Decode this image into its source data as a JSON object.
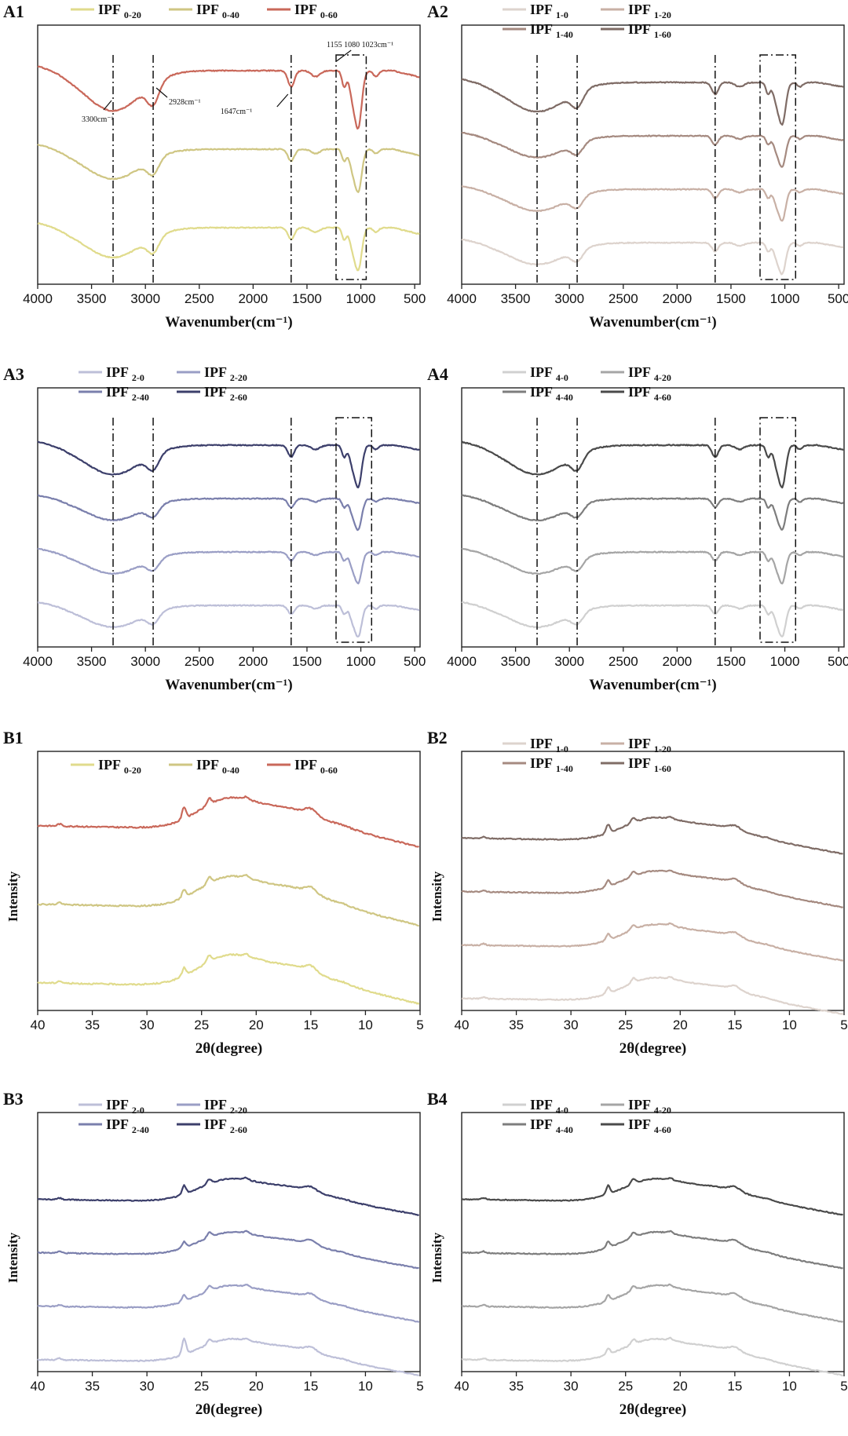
{
  "chart_data": [
    {
      "id": "A1",
      "type": "line",
      "kind": "ftir",
      "xlabel": "Wavenumber(cm⁻¹)",
      "ylabel": "",
      "xlim": [
        4000,
        450
      ],
      "xticks": [
        4000,
        3500,
        3000,
        2500,
        2000,
        1500,
        1000,
        500
      ],
      "reference_lines": [
        3300,
        2928,
        1647
      ],
      "highlight_box": [
        1230,
        950
      ],
      "annotations": [
        "3300cm⁻¹",
        "2928cm⁻¹",
        "1647cm⁻¹",
        "1155 1080 1023cm⁻¹"
      ],
      "series": [
        {
          "prefix": "IPF",
          "sub": "0-20",
          "color": "#e0db8c"
        },
        {
          "prefix": "IPF",
          "sub": "0-40",
          "color": "#cfc683"
        },
        {
          "prefix": "IPF",
          "sub": "0-60",
          "color": "#c9685a"
        }
      ]
    },
    {
      "id": "A2",
      "type": "line",
      "kind": "ftir",
      "xlabel": "Wavenumber(cm⁻¹)",
      "ylabel": "",
      "xlim": [
        4000,
        450
      ],
      "xticks": [
        4000,
        3500,
        3000,
        2500,
        2000,
        1500,
        1000,
        500
      ],
      "reference_lines": [
        3300,
        2928,
        1647
      ],
      "highlight_box": [
        1230,
        900
      ],
      "annotations": [],
      "series": [
        {
          "prefix": "IPF",
          "sub": "1-0",
          "color": "#ddd3cd"
        },
        {
          "prefix": "IPF",
          "sub": "1-20",
          "color": "#c8b0a5"
        },
        {
          "prefix": "IPF",
          "sub": "1-40",
          "color": "#a58a80"
        },
        {
          "prefix": "IPF",
          "sub": "1-60",
          "color": "#7f6c66"
        }
      ]
    },
    {
      "id": "A3",
      "type": "line",
      "kind": "ftir",
      "xlabel": "Wavenumber(cm⁻¹)",
      "ylabel": "",
      "xlim": [
        4000,
        450
      ],
      "xticks": [
        4000,
        3500,
        3000,
        2500,
        2000,
        1500,
        1000,
        500
      ],
      "reference_lines": [
        3300,
        2928,
        1647
      ],
      "highlight_box": [
        1230,
        900
      ],
      "annotations": [],
      "series": [
        {
          "prefix": "IPF",
          "sub": "2-0",
          "color": "#bdbfd8"
        },
        {
          "prefix": "IPF",
          "sub": "2-20",
          "color": "#9a9ec5"
        },
        {
          "prefix": "IPF",
          "sub": "2-40",
          "color": "#7a7fac"
        },
        {
          "prefix": "IPF",
          "sub": "2-60",
          "color": "#3c3f6b"
        }
      ]
    },
    {
      "id": "A4",
      "type": "line",
      "kind": "ftir",
      "xlabel": "Wavenumber(cm⁻¹)",
      "ylabel": "",
      "xlim": [
        4000,
        450
      ],
      "xticks": [
        4000,
        3500,
        3000,
        2500,
        2000,
        1500,
        1000,
        500
      ],
      "reference_lines": [
        3300,
        2928,
        1647
      ],
      "highlight_box": [
        1230,
        900
      ],
      "annotations": [],
      "series": [
        {
          "prefix": "IPF",
          "sub": "4-0",
          "color": "#d0d0d0"
        },
        {
          "prefix": "IPF",
          "sub": "4-20",
          "color": "#a5a5a5"
        },
        {
          "prefix": "IPF",
          "sub": "4-40",
          "color": "#7d7d7d"
        },
        {
          "prefix": "IPF",
          "sub": "4-60",
          "color": "#4a4a4a"
        }
      ]
    },
    {
      "id": "B1",
      "type": "line",
      "kind": "xrd",
      "xlabel": "2θ(degree)",
      "ylabel": "Intensity",
      "xlim": [
        40,
        5
      ],
      "xticks": [
        40,
        35,
        30,
        25,
        20,
        15,
        10,
        5
      ],
      "series": [
        {
          "prefix": "IPF",
          "sub": "0-20",
          "color": "#e0db8c"
        },
        {
          "prefix": "IPF",
          "sub": "0-40",
          "color": "#cfc683"
        },
        {
          "prefix": "IPF",
          "sub": "0-60",
          "color": "#c9685a"
        }
      ]
    },
    {
      "id": "B2",
      "type": "line",
      "kind": "xrd",
      "xlabel": "2θ(degree)",
      "ylabel": "Intensity",
      "xlim": [
        40,
        5
      ],
      "xticks": [
        40,
        35,
        30,
        25,
        20,
        15,
        10,
        5
      ],
      "series": [
        {
          "prefix": "IPF",
          "sub": "1-0",
          "color": "#ddd3cd"
        },
        {
          "prefix": "IPF",
          "sub": "1-20",
          "color": "#c8b0a5"
        },
        {
          "prefix": "IPF",
          "sub": "1-40",
          "color": "#a58a80"
        },
        {
          "prefix": "IPF",
          "sub": "1-60",
          "color": "#7f6c66"
        }
      ]
    },
    {
      "id": "B3",
      "type": "line",
      "kind": "xrd",
      "xlabel": "2θ(degree)",
      "ylabel": "Intensity",
      "xlim": [
        40,
        5
      ],
      "xticks": [
        40,
        35,
        30,
        25,
        20,
        15,
        10,
        5
      ],
      "series": [
        {
          "prefix": "IPF",
          "sub": "2-0",
          "color": "#bdbfd8"
        },
        {
          "prefix": "IPF",
          "sub": "2-20",
          "color": "#9a9ec5"
        },
        {
          "prefix": "IPF",
          "sub": "2-40",
          "color": "#7a7fac"
        },
        {
          "prefix": "IPF",
          "sub": "2-60",
          "color": "#3c3f6b"
        }
      ]
    },
    {
      "id": "B4",
      "type": "line",
      "kind": "xrd",
      "xlabel": "2θ(degree)",
      "ylabel": "Intensity",
      "xlim": [
        40,
        5
      ],
      "xticks": [
        40,
        35,
        30,
        25,
        20,
        15,
        10,
        5
      ],
      "series": [
        {
          "prefix": "IPF",
          "sub": "4-0",
          "color": "#d0d0d0"
        },
        {
          "prefix": "IPF",
          "sub": "4-20",
          "color": "#a5a5a5"
        },
        {
          "prefix": "IPF",
          "sub": "4-40",
          "color": "#7d7d7d"
        },
        {
          "prefix": "IPF",
          "sub": "4-60",
          "color": "#4a4a4a"
        }
      ]
    }
  ]
}
